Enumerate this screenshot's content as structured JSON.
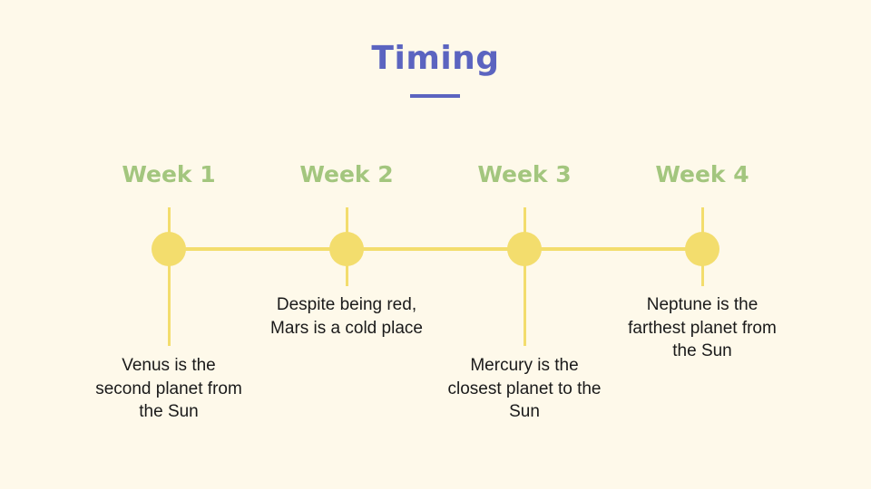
{
  "title": "Timing",
  "colors": {
    "background": "#fef9ea",
    "title": "#5b64c0",
    "week_label": "#a3c67e",
    "timeline": "#f3dd6d",
    "text": "#1a1a1a"
  },
  "weeks": [
    {
      "label": "Week 1",
      "description": "Venus is the second planet from the Sun"
    },
    {
      "label": "Week 2",
      "description": "Despite being red, Mars is a cold place"
    },
    {
      "label": "Week 3",
      "description": "Mercury is the closest planet to the Sun"
    },
    {
      "label": "Week 4",
      "description": "Neptune is the farthest planet from the Sun"
    }
  ]
}
